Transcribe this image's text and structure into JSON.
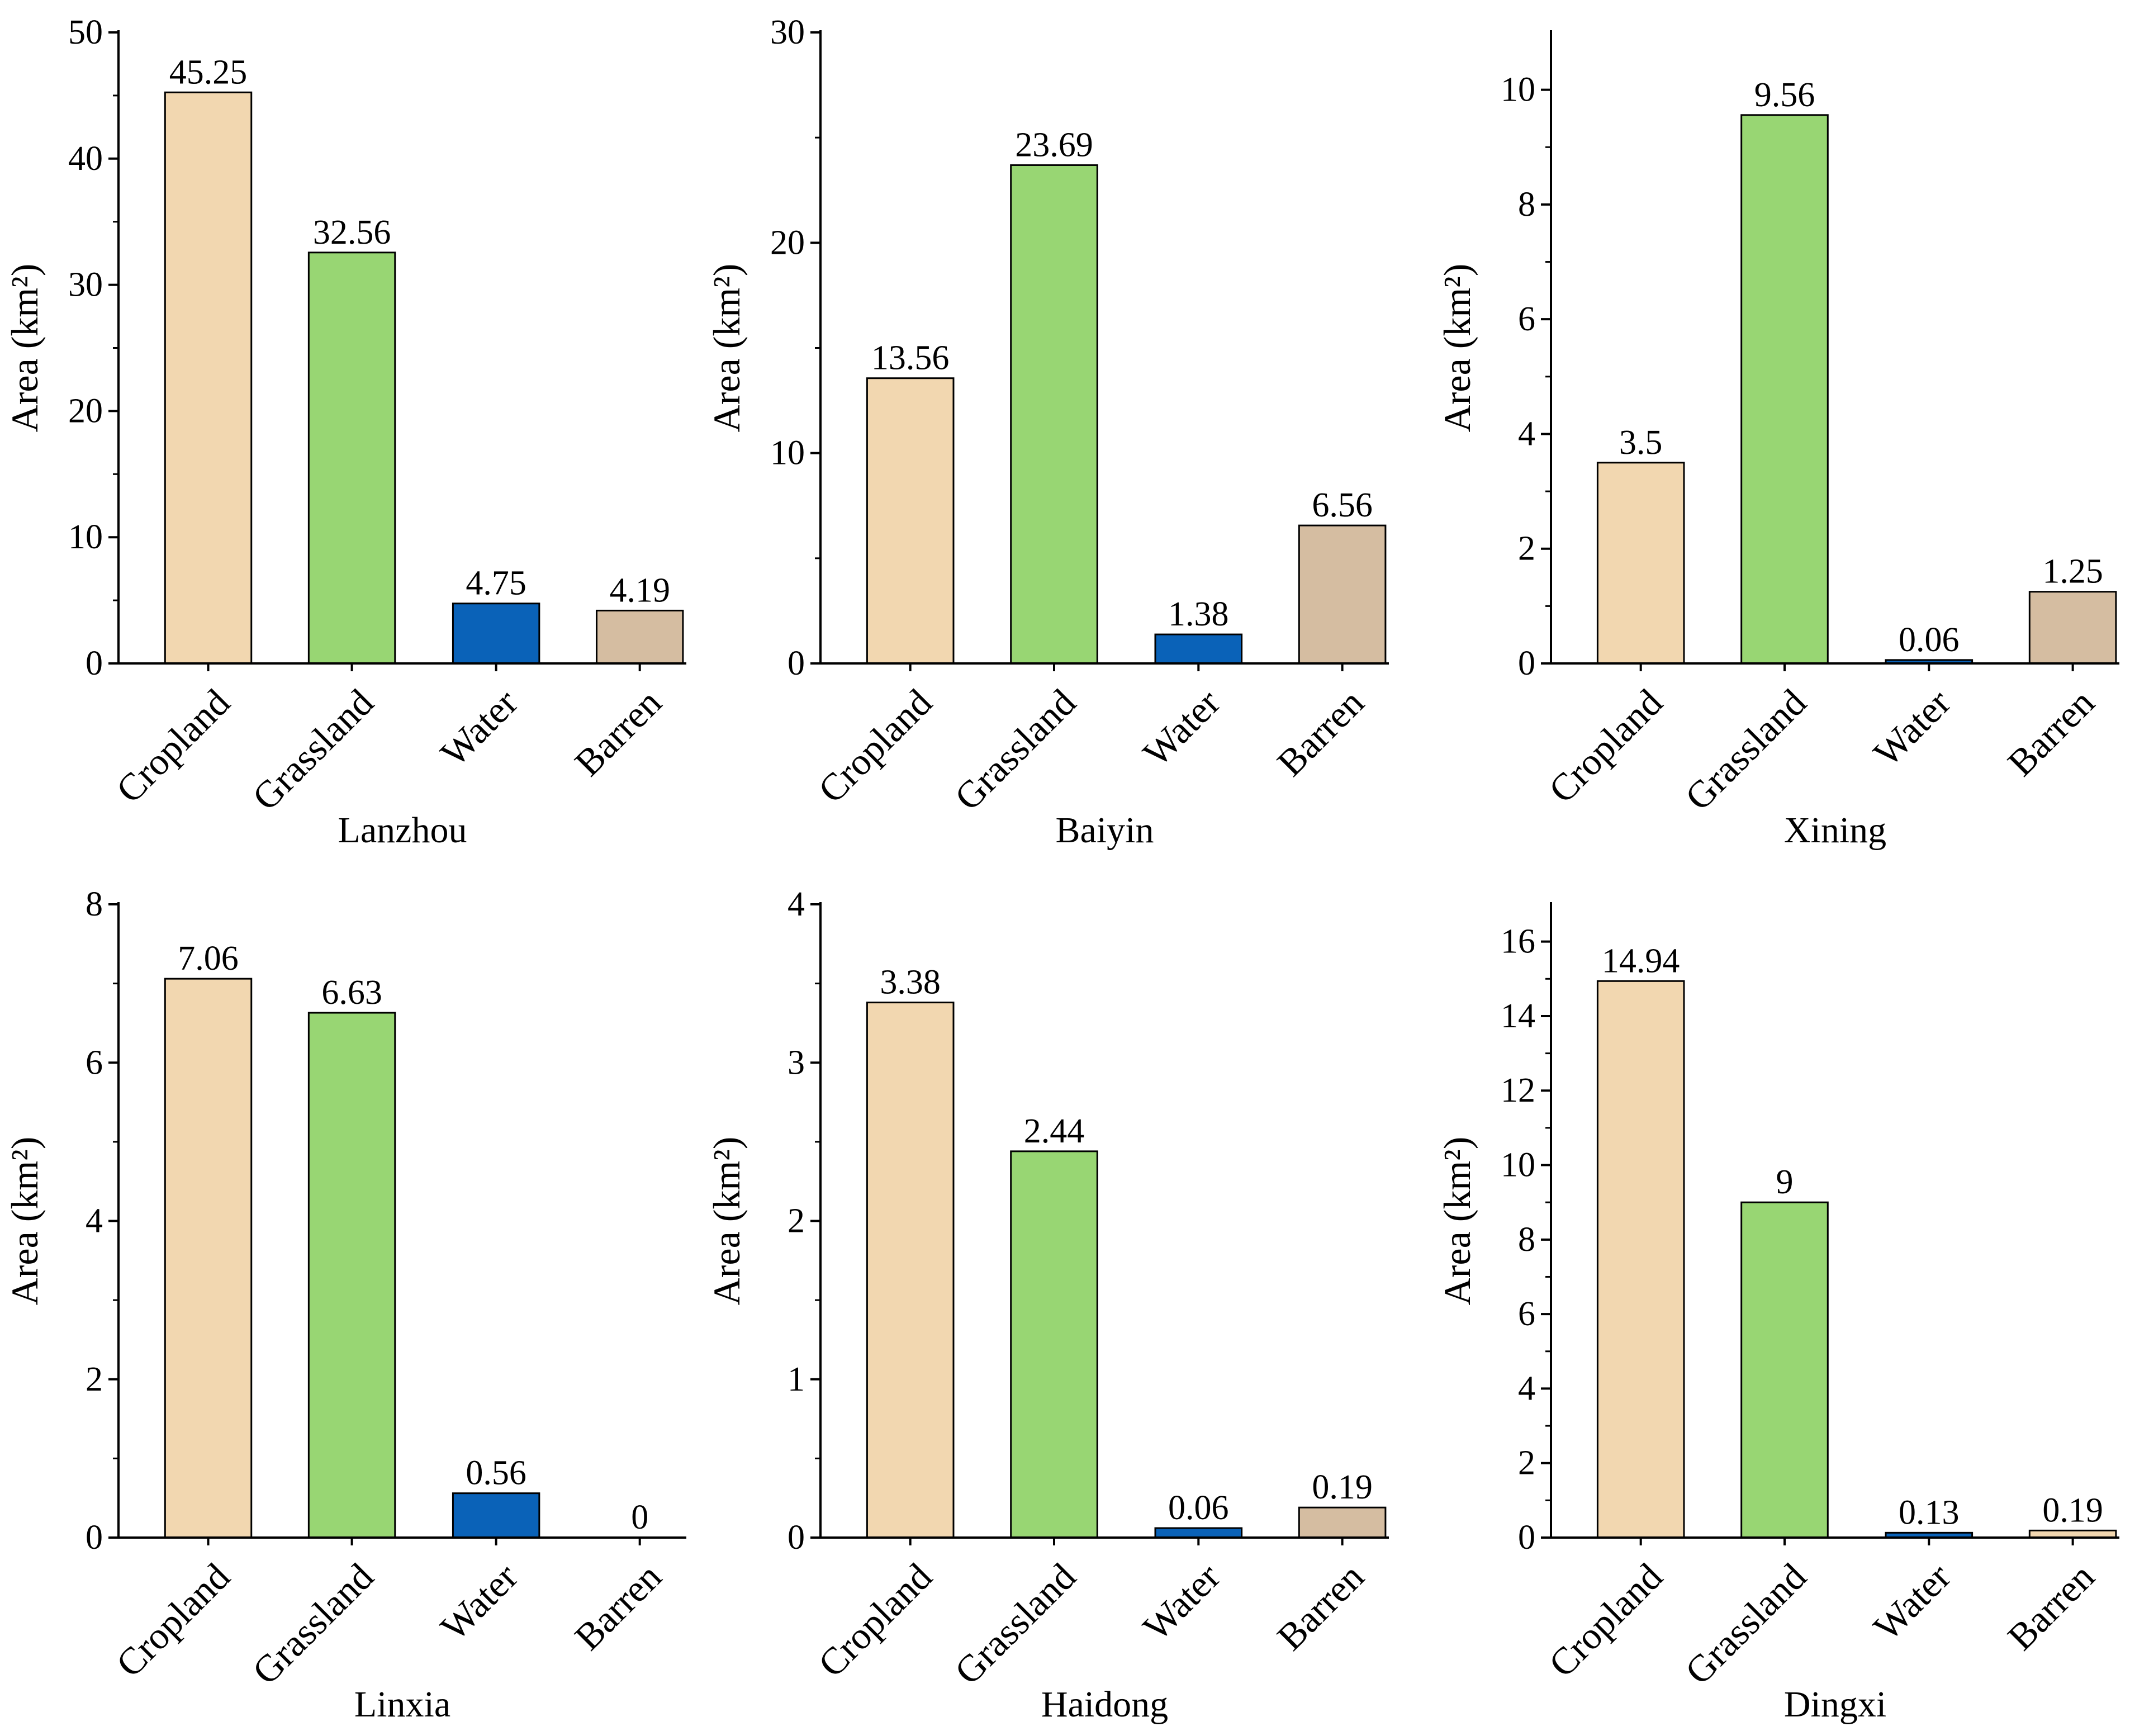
{
  "chart_data": [
    {
      "type": "bar",
      "xlabel": "Lanzhou",
      "ylabel": "Area (km²)",
      "categories": [
        "Cropland",
        "Grassland",
        "Water",
        "Barren"
      ],
      "values": [
        45.25,
        32.56,
        4.75,
        4.19
      ],
      "value_labels": [
        "45.25",
        "32.56",
        "4.75",
        "4.19"
      ],
      "ylim": [
        0,
        50
      ],
      "ticks": [
        0,
        10,
        20,
        30,
        40,
        50
      ]
    },
    {
      "type": "bar",
      "xlabel": "Baiyin",
      "ylabel": "Area (km²)",
      "categories": [
        "Cropland",
        "Grassland",
        "Water",
        "Barren"
      ],
      "values": [
        13.56,
        23.69,
        1.38,
        6.56
      ],
      "value_labels": [
        "13.56",
        "23.69",
        "1.38",
        "6.56"
      ],
      "ylim": [
        0,
        30
      ],
      "ticks": [
        0,
        10,
        20,
        30
      ]
    },
    {
      "type": "bar",
      "xlabel": "Xining",
      "ylabel": "Area (km²)",
      "categories": [
        "Cropland",
        "Grassland",
        "Water",
        "Barren"
      ],
      "values": [
        3.5,
        9.56,
        0.06,
        1.25
      ],
      "value_labels": [
        "3.5",
        "9.56",
        "0.06",
        "1.25"
      ],
      "ylim": [
        0,
        11
      ],
      "ticks": [
        0,
        2,
        4,
        6,
        8,
        10
      ]
    },
    {
      "type": "bar",
      "xlabel": "Linxia",
      "ylabel": "Area (km²)",
      "categories": [
        "Cropland",
        "Grassland",
        "Water",
        "Barren"
      ],
      "values": [
        7.06,
        6.63,
        0.56,
        0
      ],
      "value_labels": [
        "7.06",
        "6.63",
        "0.56",
        "0"
      ],
      "ylim": [
        0,
        8
      ],
      "ticks": [
        0,
        2,
        4,
        6,
        8
      ]
    },
    {
      "type": "bar",
      "xlabel": "Haidong",
      "ylabel": "Area (km²)",
      "categories": [
        "Cropland",
        "Grassland",
        "Water",
        "Barren"
      ],
      "values": [
        3.38,
        2.44,
        0.06,
        0.19
      ],
      "value_labels": [
        "3.38",
        "2.44",
        "0.06",
        "0.19"
      ],
      "ylim": [
        0,
        4
      ],
      "ticks": [
        0,
        1,
        2,
        3,
        4
      ]
    },
    {
      "type": "bar",
      "xlabel": "Dingxi",
      "ylabel": "Area (km²)",
      "categories": [
        "Cropland",
        "Grassland",
        "Water",
        "Barren"
      ],
      "values": [
        14.94,
        9,
        0.13,
        0.19
      ],
      "value_labels": [
        "14.94",
        "9",
        "0.13",
        "0.19"
      ],
      "ylim": [
        0,
        17
      ],
      "ticks": [
        0,
        2,
        4,
        6,
        8,
        10,
        12,
        14,
        16
      ]
    }
  ],
  "colors": {
    "Cropland": "#f2d7b0",
    "Grassland": "#98d673",
    "Water": "#0a62b8",
    "Barren": "#d5bda1",
    "Barren-light": "#f2d7b0",
    "axis": "#000000",
    "bar-stroke": "#000000"
  }
}
